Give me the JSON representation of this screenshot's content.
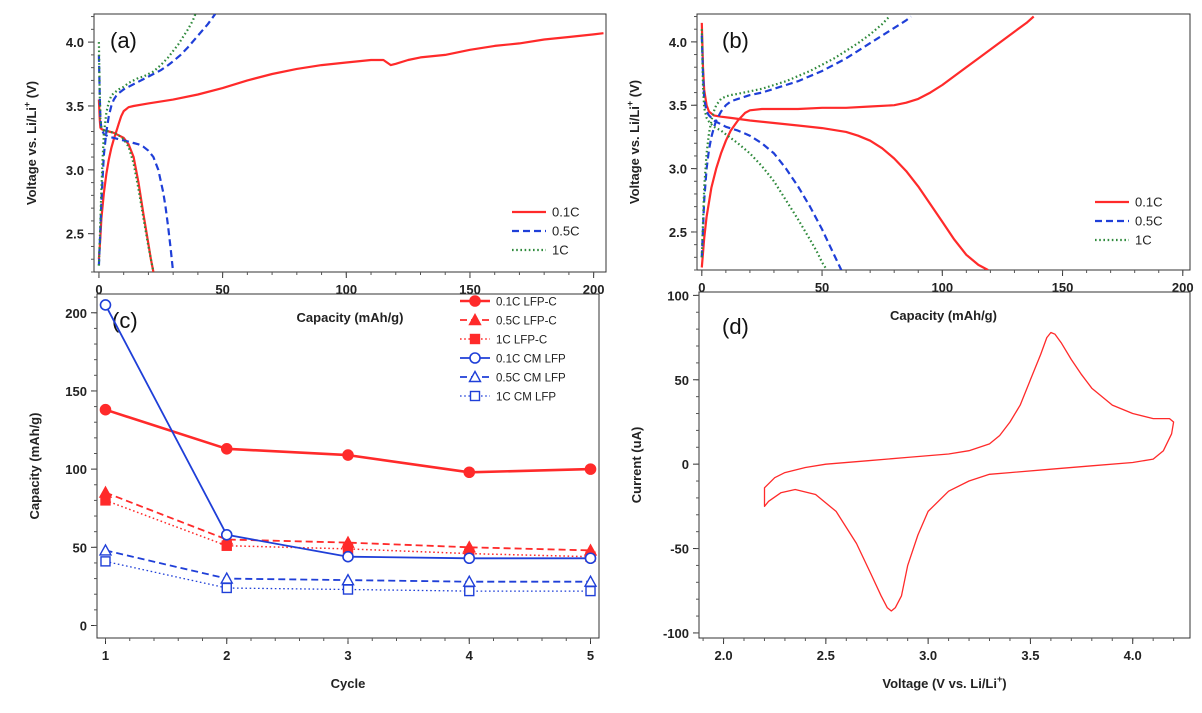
{
  "chart_data": [
    {
      "panel_label": "(a)",
      "type": "line",
      "xlabel": "Capacity (mAh/g)",
      "ylabel": "Voltage vs. Li/Li",
      "ylabel_sup": "+",
      "ylabel_unit": " (V)",
      "xlim": [
        -2,
        205
      ],
      "ylim": [
        2.2,
        4.22
      ],
      "xticks": [
        0,
        50,
        100,
        150,
        200
      ],
      "yticks": [
        2.5,
        3.0,
        3.5,
        4.0
      ],
      "ytick_labels": [
        "2.5",
        "3.0",
        "3.5",
        "4.0"
      ],
      "legend_position": "bottom-right",
      "series": [
        {
          "name": "0.1C",
          "color": "#ff2a2a",
          "dash": "solid",
          "charge": {
            "x": [
              0,
              0.5,
              1,
              2,
              3,
              4,
              5,
              6,
              7,
              8,
              9,
              10,
              12,
              14,
              20,
              30,
              40,
              50,
              60,
              70,
              80,
              90,
              100,
              110,
              115,
              118,
              120,
              125,
              130,
              140,
              150,
              160,
              170,
              180,
              190,
              200,
              204
            ],
            "y": [
              2.3,
              2.45,
              2.62,
              2.82,
              2.97,
              3.08,
              3.17,
              3.24,
              3.3,
              3.36,
              3.42,
              3.46,
              3.49,
              3.5,
              3.52,
              3.55,
              3.59,
              3.64,
              3.7,
              3.75,
              3.79,
              3.82,
              3.84,
              3.86,
              3.86,
              3.82,
              3.83,
              3.86,
              3.88,
              3.9,
              3.94,
              3.97,
              3.99,
              4.02,
              4.04,
              4.06,
              4.07
            ]
          },
          "discharge": {
            "x": [
              0,
              0.3,
              0.6,
              1,
              2,
              4,
              6,
              8,
              10,
              12,
              14,
              16,
              18,
              20,
              21,
              22
            ],
            "y": [
              3.55,
              3.4,
              3.33,
              3.32,
              3.31,
              3.3,
              3.29,
              3.27,
              3.25,
              3.2,
              3.1,
              2.9,
              2.65,
              2.42,
              2.3,
              2.2
            ]
          }
        },
        {
          "name": "0.5C",
          "color": "#1f3fd8",
          "dash": "dashed",
          "charge": {
            "x": [
              0,
              0.5,
              1,
              1.5,
              2,
              3,
              4,
              5,
              6,
              7,
              8,
              10,
              12,
              15,
              18,
              20,
              22,
              25,
              28,
              30,
              33,
              36,
              40,
              44,
              47
            ],
            "y": [
              2.25,
              2.5,
              2.75,
              2.95,
              3.12,
              3.3,
              3.42,
              3.5,
              3.55,
              3.58,
              3.6,
              3.63,
              3.65,
              3.68,
              3.71,
              3.73,
              3.75,
              3.78,
              3.82,
              3.85,
              3.9,
              3.96,
              4.05,
              4.14,
              4.22
            ]
          },
          "discharge": {
            "x": [
              0,
              0.3,
              0.6,
              1,
              2,
              4,
              6,
              8,
              10,
              12,
              14,
              16,
              18,
              20,
              22,
              24,
              26,
              27,
              28,
              29,
              30
            ],
            "y": [
              3.9,
              3.6,
              3.4,
              3.32,
              3.28,
              3.26,
              3.25,
              3.24,
              3.23,
              3.22,
              3.21,
              3.2,
              3.18,
              3.15,
              3.1,
              3.0,
              2.82,
              2.7,
              2.55,
              2.38,
              2.2
            ]
          }
        },
        {
          "name": "1C",
          "color": "#2f8a3c",
          "dash": "dotted",
          "charge": {
            "x": [
              0,
              0.5,
              1,
              1.5,
              2,
              3,
              4,
              5,
              6,
              8,
              10,
              12,
              14,
              16,
              18,
              20,
              22,
              25,
              28,
              30,
              32,
              34,
              36,
              38,
              39
            ],
            "y": [
              2.25,
              2.55,
              2.85,
              3.1,
              3.28,
              3.45,
              3.53,
              3.58,
              3.6,
              3.63,
              3.65,
              3.68,
              3.7,
              3.72,
              3.73,
              3.75,
              3.77,
              3.82,
              3.88,
              3.93,
              3.98,
              4.04,
              4.1,
              4.17,
              4.22
            ]
          },
          "discharge": {
            "x": [
              0,
              0.3,
              0.6,
              1,
              2,
              4,
              6,
              8,
              10,
              12,
              14,
              16,
              18,
              20,
              21,
              22
            ],
            "y": [
              4.0,
              3.6,
              3.4,
              3.33,
              3.31,
              3.3,
              3.29,
              3.27,
              3.24,
              3.18,
              3.05,
              2.85,
              2.62,
              2.4,
              2.3,
              2.2
            ]
          }
        }
      ]
    },
    {
      "panel_label": "(b)",
      "type": "line",
      "xlabel": "Capacity (mAh/g)",
      "ylabel": "Voltage vs. Li/Li",
      "ylabel_sup": "+",
      "ylabel_unit": " (V)",
      "xlim": [
        -2,
        203
      ],
      "ylim": [
        2.2,
        4.22
      ],
      "xticks": [
        0,
        50,
        100,
        150,
        200
      ],
      "yticks": [
        2.5,
        3.0,
        3.5,
        4.0
      ],
      "ytick_labels": [
        "2.5",
        "3.0",
        "3.5",
        "4.0"
      ],
      "legend_position": "bottom-right",
      "series": [
        {
          "name": "0.1C",
          "color": "#ff2a2a",
          "dash": "solid",
          "charge": {
            "x": [
              0,
              1,
              2,
              4,
              6,
              8,
              10,
              12,
              15,
              18,
              20,
              25,
              30,
              40,
              50,
              60,
              70,
              80,
              85,
              90,
              95,
              100,
              105,
              110,
              115,
              120,
              125,
              130,
              135,
              138
            ],
            "y": [
              2.22,
              2.45,
              2.62,
              2.85,
              3.0,
              3.12,
              3.22,
              3.3,
              3.38,
              3.44,
              3.46,
              3.47,
              3.47,
              3.47,
              3.48,
              3.48,
              3.49,
              3.5,
              3.52,
              3.55,
              3.6,
              3.66,
              3.73,
              3.8,
              3.87,
              3.94,
              4.01,
              4.08,
              4.15,
              4.2
            ]
          },
          "discharge": {
            "x": [
              0,
              0.5,
              1,
              2,
              3,
              5,
              8,
              12,
              20,
              30,
              40,
              50,
              60,
              65,
              70,
              75,
              80,
              85,
              90,
              95,
              100,
              105,
              110,
              115,
              119
            ],
            "y": [
              4.15,
              3.8,
              3.62,
              3.5,
              3.45,
              3.42,
              3.41,
              3.4,
              3.38,
              3.36,
              3.34,
              3.32,
              3.29,
              3.26,
              3.22,
              3.16,
              3.08,
              2.98,
              2.86,
              2.72,
              2.58,
              2.44,
              2.32,
              2.24,
              2.2
            ]
          }
        },
        {
          "name": "0.5C",
          "color": "#1f3fd8",
          "dash": "dashed",
          "charge": {
            "x": [
              0,
              1,
              2,
              3,
              4,
              5,
              6,
              8,
              10,
              12,
              15,
              20,
              25,
              30,
              35,
              40,
              45,
              50,
              55,
              60,
              65,
              70,
              75,
              80,
              85,
              87
            ],
            "y": [
              2.3,
              2.75,
              3.0,
              3.15,
              3.25,
              3.32,
              3.38,
              3.45,
              3.5,
              3.53,
              3.55,
              3.58,
              3.6,
              3.63,
              3.66,
              3.69,
              3.73,
              3.77,
              3.82,
              3.87,
              3.93,
              3.99,
              4.05,
              4.11,
              4.17,
              4.2
            ]
          },
          "discharge": {
            "x": [
              0,
              0.5,
              1,
              2,
              3,
              5,
              8,
              10,
              15,
              20,
              25,
              30,
              35,
              40,
              45,
              50,
              53,
              56,
              58
            ],
            "y": [
              4.05,
              3.75,
              3.55,
              3.45,
              3.42,
              3.38,
              3.35,
              3.33,
              3.3,
              3.26,
              3.2,
              3.12,
              3.0,
              2.86,
              2.7,
              2.52,
              2.4,
              2.28,
              2.2
            ]
          }
        },
        {
          "name": "1C",
          "color": "#2f8a3c",
          "dash": "dotted",
          "charge": {
            "x": [
              0,
              1,
              2,
              3,
              4,
              5,
              6,
              8,
              10,
              12,
              15,
              20,
              25,
              30,
              35,
              40,
              45,
              50,
              55,
              60,
              65,
              70,
              75,
              78
            ],
            "y": [
              2.3,
              2.85,
              3.12,
              3.28,
              3.38,
              3.45,
              3.5,
              3.55,
              3.57,
              3.58,
              3.59,
              3.61,
              3.63,
              3.66,
              3.69,
              3.73,
              3.77,
              3.82,
              3.87,
              3.93,
              3.99,
              4.06,
              4.14,
              4.2
            ]
          },
          "discharge": {
            "x": [
              0,
              0.5,
              1,
              2,
              3,
              5,
              8,
              10,
              15,
              20,
              25,
              30,
              35,
              40,
              45,
              48,
              50,
              52
            ],
            "y": [
              4.1,
              3.65,
              3.48,
              3.4,
              3.37,
              3.33,
              3.3,
              3.27,
              3.2,
              3.12,
              3.02,
              2.9,
              2.75,
              2.6,
              2.44,
              2.34,
              2.26,
              2.2
            ]
          }
        }
      ]
    },
    {
      "panel_label": "(c)",
      "type": "line",
      "xlabel": "Cycle",
      "ylabel": "Capacity (mAh/g)",
      "xlim": [
        0.93,
        5.07
      ],
      "ylim": [
        -8,
        212
      ],
      "xticks": [
        1,
        2,
        3,
        4,
        5
      ],
      "yticks": [
        0,
        50,
        100,
        150,
        200
      ],
      "legend_position": "top-right",
      "categories": [
        1,
        2,
        3,
        4,
        5
      ],
      "series": [
        {
          "name": "0.1C LFP-C",
          "color": "#ff2a2a",
          "dash": "solid",
          "marker": "circle",
          "filled": true,
          "width": 2.6,
          "values": [
            138,
            113,
            109,
            98,
            100
          ]
        },
        {
          "name": "0.5C LFP-C",
          "color": "#ff2a2a",
          "dash": "dashed",
          "marker": "triangle",
          "filled": true,
          "width": 1.8,
          "values": [
            85,
            55,
            53,
            50,
            48
          ]
        },
        {
          "name": "1C LFP-C",
          "color": "#ff2a2a",
          "dash": "dotted",
          "marker": "square",
          "filled": true,
          "width": 1.5,
          "values": [
            80,
            51,
            49,
            46,
            44
          ]
        },
        {
          "name": "0.1C CM LFP",
          "color": "#1f3fd8",
          "dash": "solid",
          "marker": "circle",
          "filled": false,
          "width": 1.8,
          "values": [
            205,
            58,
            44,
            43,
            43
          ]
        },
        {
          "name": "0.5C CM LFP",
          "color": "#1f3fd8",
          "dash": "dashed",
          "marker": "triangle",
          "filled": false,
          "width": 1.8,
          "values": [
            48,
            30,
            29,
            28,
            28
          ]
        },
        {
          "name": "1C CM LFP",
          "color": "#1f3fd8",
          "dash": "dotted",
          "marker": "square",
          "filled": false,
          "width": 1.3,
          "values": [
            41,
            24,
            23,
            22,
            22
          ]
        }
      ]
    },
    {
      "panel_label": "(d)",
      "type": "line",
      "xlabel": "Voltage (V vs. Li/Li",
      "xlabel_sup": "+",
      "xlabel_end": ")",
      "ylabel": "Current (uA)",
      "xlim": [
        1.88,
        4.28
      ],
      "ylim": [
        -103,
        102
      ],
      "xticks": [
        2.0,
        2.5,
        3.0,
        3.5,
        4.0
      ],
      "xtick_labels": [
        "2.0",
        "2.5",
        "3.0",
        "3.5",
        "4.0"
      ],
      "yticks": [
        -100,
        -50,
        0,
        50,
        100
      ],
      "series": [
        {
          "name": "",
          "color": "#ff2a2a",
          "dash": "solid",
          "width": 1.3,
          "x": [
            2.2,
            2.25,
            2.3,
            2.4,
            2.5,
            2.7,
            2.9,
            3.1,
            3.2,
            3.3,
            3.35,
            3.4,
            3.45,
            3.5,
            3.55,
            3.58,
            3.6,
            3.62,
            3.65,
            3.7,
            3.75,
            3.8,
            3.9,
            4.0,
            4.1,
            4.18,
            4.2,
            4.19,
            4.15,
            4.1,
            4.0,
            3.8,
            3.6,
            3.4,
            3.3,
            3.2,
            3.1,
            3.0,
            2.95,
            2.9,
            2.87,
            2.84,
            2.82,
            2.8,
            2.77,
            2.72,
            2.65,
            2.55,
            2.45,
            2.35,
            2.28,
            2.22,
            2.2
          ],
          "y": [
            -14,
            -8,
            -5,
            -2,
            0,
            2,
            4,
            6,
            8,
            12,
            17,
            25,
            35,
            50,
            65,
            75,
            78,
            77,
            72,
            62,
            53,
            45,
            35,
            30,
            27,
            27,
            25,
            18,
            8,
            3,
            1,
            -1,
            -3,
            -5,
            -6,
            -10,
            -16,
            -28,
            -42,
            -60,
            -78,
            -85,
            -87,
            -85,
            -78,
            -65,
            -47,
            -28,
            -18,
            -15,
            -17,
            -22,
            -25
          ]
        }
      ]
    }
  ]
}
